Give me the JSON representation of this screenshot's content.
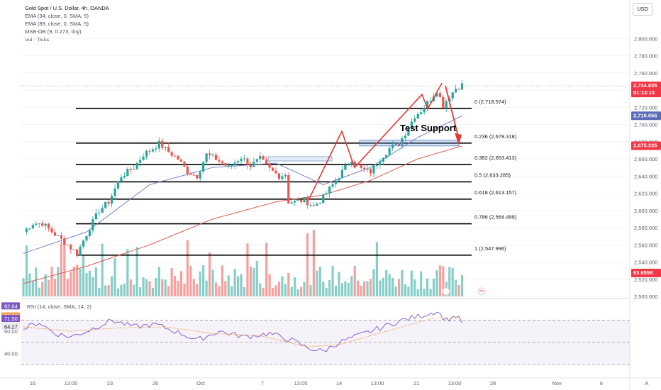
{
  "legend": {
    "title": "Gold Spot / U.S. Dollar, 4h, OANDA",
    "ind1": "EMA (34, close, 0, SMA, 5)",
    "ind2": "EMA (89, close, 0, SMA, 5)",
    "ind3": "MSB-OB (9, 0.273, tiny)",
    "ind4": "Vol · Ticks"
  },
  "currency_button": "USD",
  "annotation": "Test Support",
  "price_tags": {
    "current": "2,744.835",
    "countdown": "01:13:13",
    "ema34": "2,710.056",
    "ema89": "2,675.235",
    "volume": "63.655K"
  },
  "colors": {
    "up": "#26a69a",
    "down": "#ef5350",
    "ema34": "#7b7fc4",
    "ema89": "#e05a4f",
    "arrow": "#e53935",
    "rsi": "#7e57c2"
  },
  "chart_data": {
    "type": "candlestick",
    "symbol": "XAUUSD",
    "timeframe": "4h",
    "y_range": [
      2500,
      2820
    ],
    "y_ticks": [
      2800,
      2780,
      2760,
      2740,
      2720,
      2700,
      2680,
      2660,
      2640,
      2620,
      2600,
      2580,
      2560,
      2540,
      2520,
      2500
    ],
    "x_ticks": [
      "16",
      "13:00",
      "23",
      "26",
      "Oct",
      "7",
      "13:00",
      "14",
      "13:00",
      "21",
      "13:00",
      "28",
      "Nov",
      "6",
      "A"
    ],
    "path": [
      [
        0,
        2575
      ],
      [
        3,
        2585
      ],
      [
        6,
        2585
      ],
      [
        10,
        2572
      ],
      [
        14,
        2560
      ],
      [
        17,
        2550
      ],
      [
        21,
        2580
      ],
      [
        24,
        2600
      ],
      [
        27,
        2610
      ],
      [
        31,
        2640
      ],
      [
        35,
        2650
      ],
      [
        38,
        2665
      ],
      [
        41,
        2672
      ],
      [
        43,
        2678
      ],
      [
        46,
        2668
      ],
      [
        49,
        2660
      ],
      [
        52,
        2645
      ],
      [
        55,
        2640
      ],
      [
        58,
        2665
      ],
      [
        61,
        2660
      ],
      [
        65,
        2650
      ],
      [
        69,
        2662
      ],
      [
        72,
        2652
      ],
      [
        75,
        2660
      ],
      [
        78,
        2648
      ],
      [
        81,
        2640
      ],
      [
        83,
        2642
      ],
      [
        84,
        2610
      ],
      [
        86,
        2610
      ],
      [
        89,
        2612
      ],
      [
        92,
        2605
      ],
      [
        95,
        2615
      ],
      [
        98,
        2630
      ],
      [
        101,
        2645
      ],
      [
        104,
        2660
      ],
      [
        107,
        2648
      ],
      [
        110,
        2645
      ],
      [
        113,
        2660
      ],
      [
        116,
        2672
      ],
      [
        119,
        2678
      ],
      [
        121,
        2690
      ],
      [
        124,
        2710
      ],
      [
        126,
        2716
      ],
      [
        129,
        2730
      ],
      [
        131,
        2740
      ],
      [
        133,
        2722
      ],
      [
        135,
        2733
      ],
      [
        137,
        2742
      ],
      [
        139,
        2746
      ]
    ],
    "ema34_path": [
      [
        0,
        2550
      ],
      [
        20,
        2575
      ],
      [
        40,
        2630
      ],
      [
        60,
        2650
      ],
      [
        80,
        2655
      ],
      [
        95,
        2630
      ],
      [
        110,
        2650
      ],
      [
        125,
        2685
      ],
      [
        139,
        2710
      ]
    ],
    "ema89_path": [
      [
        0,
        2515
      ],
      [
        20,
        2535
      ],
      [
        40,
        2560
      ],
      [
        60,
        2590
      ],
      [
        80,
        2610
      ],
      [
        95,
        2618
      ],
      [
        110,
        2635
      ],
      [
        125,
        2660
      ],
      [
        139,
        2675
      ]
    ],
    "fibonacci": [
      {
        "level": "0",
        "price": 2718.574
      },
      {
        "level": "0.236",
        "price": 2678.318
      },
      {
        "level": "0.382",
        "price": 2653.413
      },
      {
        "level": "0.5",
        "price": 2633.285
      },
      {
        "level": "0.618",
        "price": 2613.157
      },
      {
        "level": "0.786",
        "price": 2584.499
      },
      {
        "level": "1",
        "price": 2547.996
      }
    ],
    "last_price": 2744.835,
    "ema34_last": 2710.056,
    "ema89_last": 2675.235,
    "rsi": {
      "label": "RSI (14, close, SMA, 14, 2)",
      "y_ticks": [
        60.0,
        40.0
      ],
      "levels": [
        70,
        50,
        30
      ],
      "value_tags": [
        "82.84",
        "73.86",
        "71.50",
        "64.27"
      ],
      "rsi_path": [
        [
          0,
          62
        ],
        [
          5,
          68
        ],
        [
          10,
          58
        ],
        [
          15,
          55
        ],
        [
          20,
          60
        ],
        [
          28,
          70
        ],
        [
          35,
          64
        ],
        [
          42,
          66
        ],
        [
          50,
          58
        ],
        [
          55,
          52
        ],
        [
          62,
          60
        ],
        [
          70,
          55
        ],
        [
          78,
          58
        ],
        [
          85,
          52
        ],
        [
          90,
          45
        ],
        [
          95,
          42
        ],
        [
          100,
          50
        ],
        [
          108,
          58
        ],
        [
          115,
          65
        ],
        [
          120,
          70
        ],
        [
          126,
          74
        ],
        [
          131,
          78
        ],
        [
          134,
          70
        ],
        [
          137,
          74
        ],
        [
          139,
          68
        ]
      ],
      "ma_path": [
        [
          0,
          64
        ],
        [
          15,
          60
        ],
        [
          30,
          63
        ],
        [
          45,
          64
        ],
        [
          60,
          58
        ],
        [
          75,
          56
        ],
        [
          90,
          46
        ],
        [
          100,
          48
        ],
        [
          110,
          56
        ],
        [
          120,
          64
        ],
        [
          130,
          72
        ],
        [
          139,
          72
        ]
      ]
    }
  }
}
